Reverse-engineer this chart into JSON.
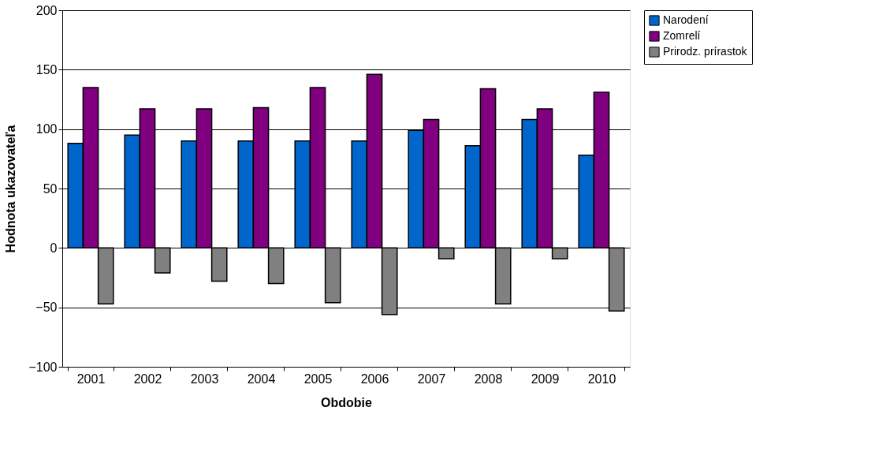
{
  "chart_data": {
    "type": "bar",
    "xlabel": "Obdobie",
    "ylabel": "Hodnota ukazovateľa",
    "categories": [
      "2001",
      "2002",
      "2003",
      "2004",
      "2005",
      "2006",
      "2007",
      "2008",
      "2009",
      "2010"
    ],
    "series": [
      {
        "name": "Narodení",
        "color": "#0066cc",
        "values": [
          88,
          95,
          90,
          90,
          90,
          90,
          99,
          86,
          108,
          78
        ]
      },
      {
        "name": "Zomrelí",
        "color": "#800080",
        "values": [
          135,
          117,
          117,
          118,
          135,
          146,
          108,
          134,
          117,
          131
        ]
      },
      {
        "name": "Prirodz. prírastok",
        "color": "#808080",
        "values": [
          -47,
          -21,
          -28,
          -30,
          -46,
          -56,
          -9,
          -47,
          -9,
          -53
        ]
      }
    ],
    "ylim": [
      -100,
      200
    ],
    "yticks": [
      -100,
      -50,
      0,
      50,
      100,
      150,
      200
    ],
    "grid": "y",
    "legend": "right"
  }
}
